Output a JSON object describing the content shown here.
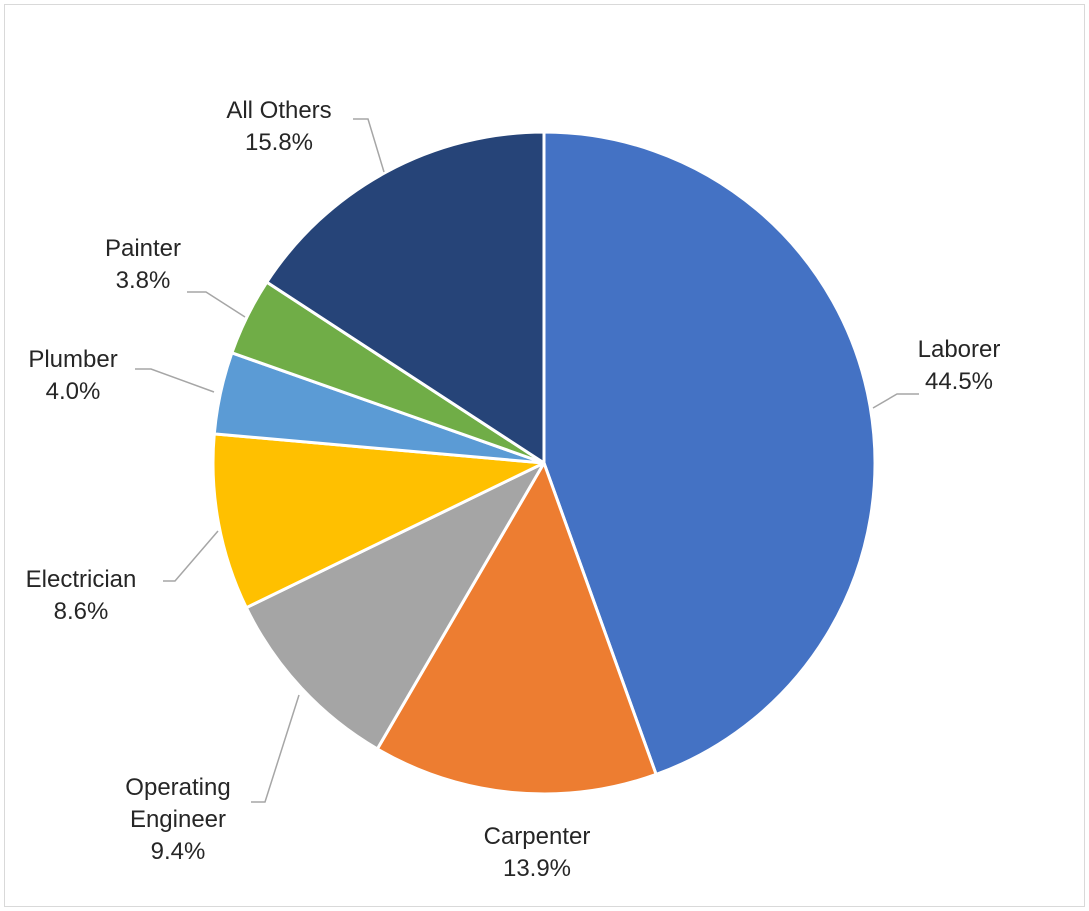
{
  "chart_data": {
    "type": "pie",
    "title": "",
    "slices": [
      {
        "label": [
          "Laborer"
        ],
        "value": 44.5,
        "value_text": "44.5%",
        "color": "#4472C4"
      },
      {
        "label": [
          "Carpenter"
        ],
        "value": 13.9,
        "value_text": "13.9%",
        "color": "#ED7D31"
      },
      {
        "label": [
          "Operating",
          "Engineer"
        ],
        "value": 9.4,
        "value_text": "9.4%",
        "color": "#A5A5A5"
      },
      {
        "label": [
          "Electrician"
        ],
        "value": 8.6,
        "value_text": "8.6%",
        "color": "#FFC000"
      },
      {
        "label": [
          "Plumber"
        ],
        "value": 4.0,
        "value_text": "4.0%",
        "color": "#5B9BD5"
      },
      {
        "label": [
          "Painter"
        ],
        "value": 3.8,
        "value_text": "3.8%",
        "color": "#70AD47"
      },
      {
        "label": [
          "All Others"
        ],
        "value": 15.8,
        "value_text": "15.8%",
        "color": "#264478"
      }
    ],
    "start_angle_deg": 0,
    "direction": "clockwise",
    "legend": "none",
    "data_labels": "outside with leader lines"
  }
}
